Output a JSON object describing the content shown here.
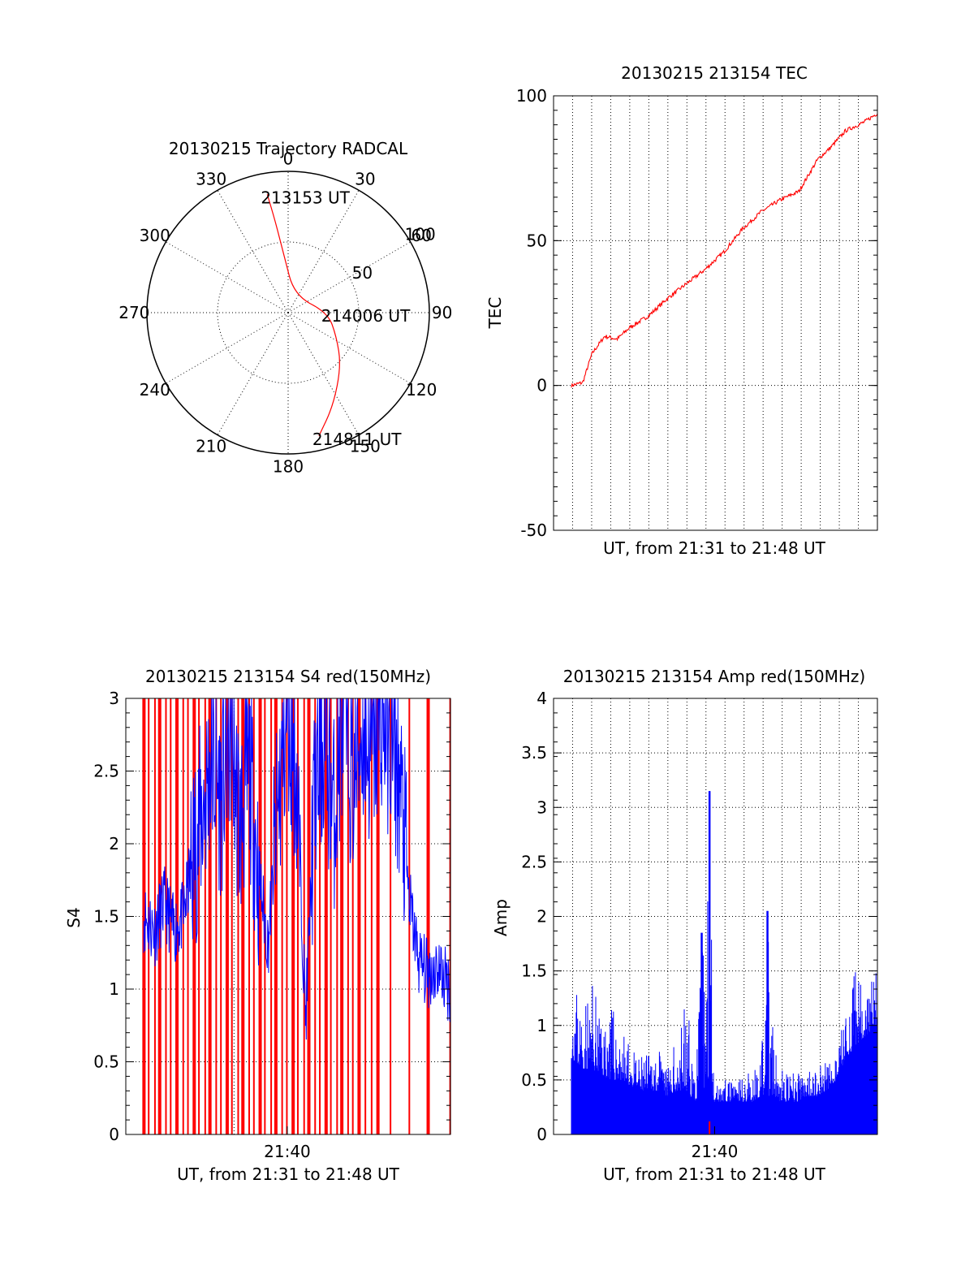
{
  "chart_data": [
    {
      "type": "polar",
      "title": "20130215 Trajectory RADCAL",
      "angle_ticks": [
        "0",
        "30",
        "60",
        "90",
        "120",
        "150",
        "180",
        "210",
        "240",
        "270",
        "300",
        "330"
      ],
      "radial_ticks": [
        {
          "label": "50",
          "value": 50
        },
        {
          "label": "100",
          "value": 100
        }
      ],
      "rmax": 100,
      "colors": {
        "trajectory": "#ff0000",
        "grid": "#000000"
      },
      "series": [
        {
          "points": [
            {
              "az": 350,
              "r": 85
            },
            {
              "az": 352,
              "r": 65
            },
            {
              "az": 356,
              "r": 40
            },
            {
              "az": 20,
              "r": 13
            },
            {
              "az": 90,
              "r": 28
            },
            {
              "az": 116,
              "r": 38
            },
            {
              "az": 135,
              "r": 53
            },
            {
              "az": 154,
              "r": 73
            },
            {
              "az": 166,
              "r": 90
            }
          ]
        }
      ],
      "annotations": [
        {
          "text": "213153 UT",
          "az": 350,
          "r": 85
        },
        {
          "text": "214006 UT",
          "az": 90,
          "r": 28
        },
        {
          "text": "214811 UT",
          "az": 166,
          "r": 90
        }
      ]
    },
    {
      "type": "line",
      "title": "20130215 213154 TEC",
      "xlabel": "UT, from 21:31 to 21:48 UT",
      "ylabel": "TEC",
      "xlim": [
        "21:31:54",
        "21:48:11"
      ],
      "ylim": [
        -50,
        100
      ],
      "yticks": [
        -50,
        0,
        50,
        100
      ],
      "grid": true,
      "colors": {
        "line": "#ff0000"
      },
      "series": [
        {
          "x": [
            "21:31:54",
            "21:32:30",
            "21:33:00",
            "21:33:40",
            "21:34:20",
            "21:35:00",
            "21:36:00",
            "21:37:00",
            "21:38:00",
            "21:39:00",
            "21:40:00",
            "21:41:00",
            "21:42:00",
            "21:43:00",
            "21:44:00",
            "21:45:00",
            "21:45:40",
            "21:46:30",
            "21:47:30",
            "21:48:11"
          ],
          "values": [
            0,
            1,
            11,
            17,
            16,
            20,
            24,
            30,
            35,
            40,
            46,
            54,
            60,
            64,
            67,
            78,
            82,
            88,
            91,
            94
          ]
        }
      ]
    },
    {
      "type": "line",
      "title": "20130215 213154 S4 red(150MHz)",
      "xlabel": "UT, from 21:31 to 21:48 UT",
      "ylabel": "S4",
      "xlim": [
        "21:31:54",
        "21:48:11"
      ],
      "ylim": [
        0,
        3
      ],
      "yticks": [
        0,
        0.5,
        1,
        1.5,
        2,
        2.5,
        3
      ],
      "xticks": [
        "21:40"
      ],
      "grid": true,
      "colors": {
        "red_band": "#ff0000",
        "blue_series": "#0000ff"
      },
      "red_lines_x": [
        "21:31:55",
        "21:32:10",
        "21:32:30",
        "21:32:45",
        "21:33:05",
        "21:33:20",
        "21:33:40",
        "21:34:00",
        "21:34:15",
        "21:34:35",
        "21:34:50",
        "21:35:10",
        "21:35:25",
        "21:35:45",
        "21:36:00",
        "21:36:20",
        "21:36:35",
        "21:36:55",
        "21:37:10",
        "21:37:30",
        "21:37:45",
        "21:38:05",
        "21:38:20",
        "21:38:40",
        "21:38:55",
        "21:39:15",
        "21:39:30",
        "21:39:50",
        "21:40:05",
        "21:40:25",
        "21:40:40",
        "21:41:00",
        "21:41:15",
        "21:41:35",
        "21:41:50",
        "21:42:10",
        "21:42:25",
        "21:42:45",
        "21:43:00",
        "21:43:20",
        "21:43:40",
        "21:44:00",
        "21:44:20",
        "21:45:00",
        "21:46:00",
        "21:47:00",
        "21:48:10"
      ],
      "series": [
        {
          "x": [
            "21:31:54",
            "21:32:30",
            "21:33:00",
            "21:33:30",
            "21:34:00",
            "21:34:30",
            "21:35:00",
            "21:35:30",
            "21:36:00",
            "21:36:30",
            "21:37:00",
            "21:37:30",
            "21:38:00",
            "21:38:30",
            "21:39:00",
            "21:39:30",
            "21:40:00",
            "21:40:30",
            "21:41:00",
            "21:41:30",
            "21:42:00",
            "21:42:30",
            "21:43:00",
            "21:43:30",
            "21:44:00",
            "21:44:30",
            "21:45:00",
            "21:45:30",
            "21:46:00",
            "21:46:30",
            "21:47:00",
            "21:47:30",
            "21:48:11"
          ],
          "values": [
            1.5,
            1.4,
            1.6,
            1.4,
            1.5,
            1.9,
            2.2,
            2.6,
            2.3,
            2.8,
            2.1,
            2.5,
            1.8,
            1.3,
            2.2,
            2.9,
            2.5,
            0.8,
            2.4,
            2.7,
            2.2,
            2.9,
            2.4,
            2.8,
            2.6,
            2.9,
            2.7,
            2.4,
            1.6,
            1.2,
            1.1,
            1.15,
            1.0
          ]
        }
      ]
    },
    {
      "type": "line",
      "title": "20130215 213154 Amp red(150MHz)",
      "xlabel": "UT, from 21:31 to 21:48 UT",
      "ylabel": "Amp",
      "xlim": [
        "21:31:54",
        "21:48:11"
      ],
      "ylim": [
        0,
        4
      ],
      "yticks": [
        0,
        0.5,
        1,
        1.5,
        2,
        2.5,
        3,
        3.5,
        4
      ],
      "xticks": [
        "21:40"
      ],
      "grid": true,
      "colors": {
        "amp": "#0000ff",
        "marker": "#ff0000"
      },
      "series": [
        {
          "x": [
            "21:31:54",
            "21:32:30",
            "21:33:00",
            "21:33:30",
            "21:34:00",
            "21:34:30",
            "21:35:00",
            "21:35:30",
            "21:36:00",
            "21:36:30",
            "21:37:00",
            "21:37:30",
            "21:38:00",
            "21:38:30",
            "21:38:50",
            "21:39:15",
            "21:39:30",
            "21:39:45",
            "21:40:00",
            "21:40:30",
            "21:41:00",
            "21:41:30",
            "21:42:00",
            "21:42:20",
            "21:42:40",
            "21:43:00",
            "21:43:30",
            "21:44:00",
            "21:44:30",
            "21:45:00",
            "21:45:30",
            "21:46:00",
            "21:46:30",
            "21:47:00",
            "21:47:30",
            "21:48:11"
          ],
          "peaks": [
            1.5,
            1.2,
            1.4,
            1.1,
            1.2,
            1.0,
            0.8,
            0.7,
            0.75,
            0.8,
            0.6,
            0.9,
            1.3,
            0.6,
            1.8,
            3.15,
            0.6,
            0.55,
            0.5,
            0.5,
            0.55,
            0.6,
            0.7,
            2.0,
            0.8,
            0.6,
            0.55,
            0.6,
            0.6,
            0.65,
            0.7,
            0.7,
            1.2,
            1.5,
            1.4,
            1.55
          ],
          "floor": [
            0.7,
            0.6,
            0.6,
            0.55,
            0.5,
            0.5,
            0.45,
            0.4,
            0.4,
            0.4,
            0.35,
            0.4,
            0.4,
            0.3,
            0.4,
            0.5,
            0.3,
            0.3,
            0.3,
            0.3,
            0.3,
            0.3,
            0.35,
            0.35,
            0.35,
            0.3,
            0.3,
            0.3,
            0.35,
            0.35,
            0.4,
            0.5,
            0.7,
            0.8,
            0.9,
            1.0
          ]
        }
      ]
    }
  ]
}
